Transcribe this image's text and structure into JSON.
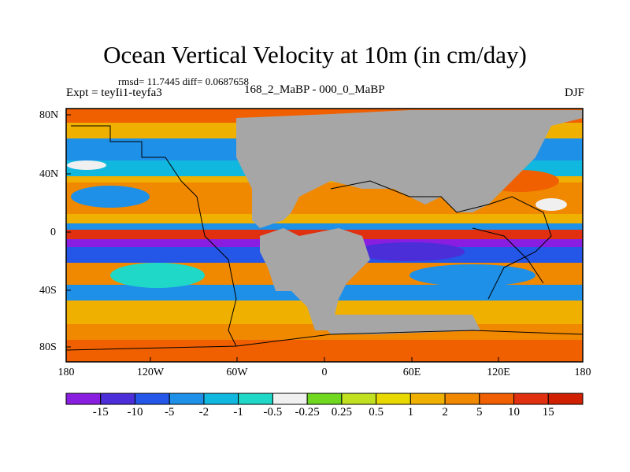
{
  "title": "Ocean Vertical Velocity at 10m (in cm/day)",
  "stats": "rmsd= 11.7445 diff= 0.0687658",
  "experiment": "Expt = teyIi1-teyfa3",
  "period": "168_2_MaBP - 000_0_MaBP",
  "season": "DJF",
  "lat_ticks": [
    "80N",
    "40N",
    "0",
    "40S",
    "80S"
  ],
  "lon_ticks": [
    "180",
    "120W",
    "60W",
    "0",
    "60E",
    "120E",
    "180"
  ],
  "colorbar": {
    "labels": [
      "-15",
      "-10",
      "-5",
      "-2",
      "-1",
      "-0.5",
      "-0.25",
      "0.25",
      "0.5",
      "1",
      "2",
      "5",
      "10",
      "15"
    ],
    "colors": [
      "#8a1ee0",
      "#4b2ed8",
      "#2456e8",
      "#1e90e8",
      "#10b8e0",
      "#20d8c8",
      "#f0f0f0",
      "#70d820",
      "#c0e020",
      "#e8d800",
      "#f0b000",
      "#f08800",
      "#f06000",
      "#e03010"
    ]
  },
  "land_color": "#a6a6a6",
  "chart_data": {
    "type": "heatmap",
    "title": "Ocean Vertical Velocity at 10m (in cm/day)",
    "xlabel": "",
    "ylabel": "",
    "lon_range": [
      -180,
      180
    ],
    "lat_range": [
      -90,
      90
    ],
    "levels": [
      -15,
      -10,
      -5,
      -2,
      -1,
      -0.5,
      -0.25,
      0.25,
      0.5,
      1,
      2,
      5,
      10,
      15
    ]
  }
}
